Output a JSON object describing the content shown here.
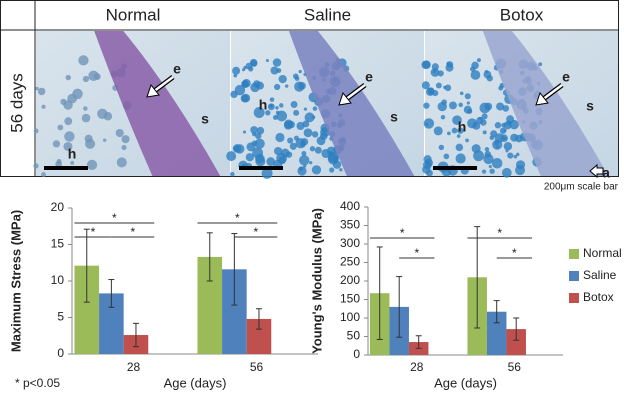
{
  "panels": [
    {
      "title": "Normal",
      "labels": [
        "e",
        "h",
        "s"
      ]
    },
    {
      "title": "Saline",
      "labels": [
        "e",
        "h",
        "s"
      ]
    },
    {
      "title": "Botox",
      "labels": [
        "e",
        "h",
        "s",
        "a"
      ]
    }
  ],
  "row_label": "56 days",
  "scale_note": "200μm scale bar",
  "footnote": "* p<0.05",
  "chart_data": [
    {
      "type": "bar",
      "y_label": "Maximum Stress (MPa)",
      "x_label": "Age (days)",
      "categories": [
        "28",
        "56"
      ],
      "series": [
        {
          "name": "Normal",
          "color": "#9bbb59",
          "values": [
            12.1,
            13.3
          ],
          "errors": [
            5.0,
            3.3
          ]
        },
        {
          "name": "Saline",
          "color": "#4f81bd",
          "values": [
            8.3,
            11.6
          ],
          "errors": [
            1.9,
            4.9
          ]
        },
        {
          "name": "Botox",
          "color": "#c0504d",
          "values": [
            2.6,
            4.8
          ],
          "errors": [
            1.6,
            1.4
          ]
        }
      ],
      "ylim": [
        0,
        20
      ],
      "yticks": [
        0,
        5,
        10,
        15,
        20
      ],
      "significance": [
        {
          "category": "28",
          "series": [
            "Normal",
            "Saline"
          ],
          "label": "*"
        },
        {
          "category": "28",
          "series": [
            "Saline",
            "Botox"
          ],
          "label": "*"
        },
        {
          "category": "28",
          "series": [
            "Normal",
            "Botox"
          ],
          "label": "*"
        },
        {
          "category": "56",
          "series": [
            "Normal",
            "Botox"
          ],
          "label": "*"
        },
        {
          "category": "56",
          "series": [
            "Saline",
            "Botox"
          ],
          "label": "*"
        }
      ]
    },
    {
      "type": "bar",
      "y_label": "Young's Modulus (MPa)",
      "x_label": "Age (days)",
      "categories": [
        "28",
        "56"
      ],
      "series": [
        {
          "name": "Normal",
          "color": "#9bbb59",
          "values": [
            167,
            210
          ],
          "errors": [
            125,
            137
          ]
        },
        {
          "name": "Saline",
          "color": "#4f81bd",
          "values": [
            130,
            117
          ],
          "errors": [
            82,
            30
          ]
        },
        {
          "name": "Botox",
          "color": "#c0504d",
          "values": [
            35,
            70
          ],
          "errors": [
            17,
            30
          ]
        }
      ],
      "ylim": [
        0,
        400
      ],
      "yticks": [
        0,
        50,
        100,
        150,
        200,
        250,
        300,
        350,
        400
      ],
      "legend": "right",
      "significance": [
        {
          "category": "28",
          "series": [
            "Normal",
            "Botox"
          ],
          "label": "*"
        },
        {
          "category": "28",
          "series": [
            "Saline",
            "Botox"
          ],
          "label": "*"
        },
        {
          "category": "56",
          "series": [
            "Normal",
            "Botox"
          ],
          "label": "*"
        },
        {
          "category": "56",
          "series": [
            "Saline",
            "Botox"
          ],
          "label": "*"
        }
      ]
    }
  ]
}
